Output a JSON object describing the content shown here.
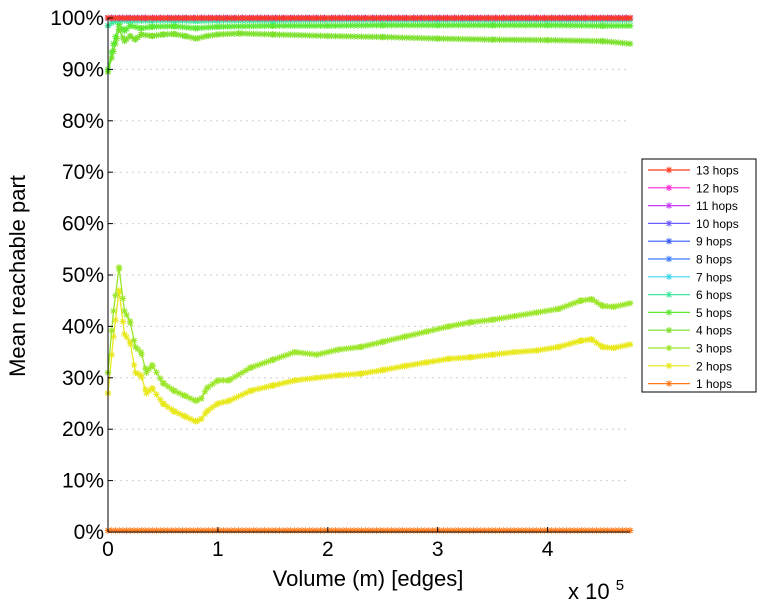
{
  "chart_data": {
    "type": "line",
    "xlabel": "Volume (m) [edges]",
    "ylabel": "Mean reachable part",
    "x_multiplier": "x 10",
    "x_multiplier_exp": "5",
    "xlim": [
      0,
      4.75
    ],
    "ylim": [
      0,
      100
    ],
    "x_ticks": [
      "0",
      "1",
      "2",
      "3",
      "4"
    ],
    "x_tick_values": [
      0,
      1,
      2,
      3,
      4
    ],
    "y_ticks": [
      "0%",
      "10%",
      "20%",
      "30%",
      "40%",
      "50%",
      "60%",
      "70%",
      "80%",
      "90%",
      "100%"
    ],
    "y_tick_values": [
      0,
      10,
      20,
      30,
      40,
      50,
      60,
      70,
      80,
      90,
      100
    ],
    "grid": "horizontal-dotted",
    "legend_position": "right",
    "series": [
      {
        "name": "13 hops",
        "color": "#ff3b1f",
        "marker": "asterisk",
        "x": [
          0,
          4.75
        ],
        "y": [
          100,
          100
        ]
      },
      {
        "name": "12 hops",
        "color": "#ff2ad4",
        "marker": "asterisk",
        "x": [
          0,
          4.75
        ],
        "y": [
          100,
          100
        ]
      },
      {
        "name": "11 hops",
        "color": "#c83cff",
        "marker": "asterisk",
        "x": [
          0,
          4.75
        ],
        "y": [
          100,
          100
        ]
      },
      {
        "name": "10 hops",
        "color": "#6a5cff",
        "marker": "asterisk",
        "x": [
          0,
          4.75
        ],
        "y": [
          100,
          100
        ]
      },
      {
        "name": "9 hops",
        "color": "#3a5cff",
        "marker": "asterisk",
        "x": [
          0,
          4.75
        ],
        "y": [
          100,
          100
        ]
      },
      {
        "name": "8 hops",
        "color": "#3c7cff",
        "marker": "asterisk",
        "x": [
          0,
          4.75
        ],
        "y": [
          100,
          100
        ]
      },
      {
        "name": "7 hops",
        "color": "#3ed6e8",
        "marker": "asterisk",
        "x": [
          0,
          4.75
        ],
        "y": [
          100,
          100
        ]
      },
      {
        "name": "6 hops",
        "color": "#3ee89c",
        "marker": "asterisk",
        "x": [
          0,
          0.05,
          0.1,
          0.2,
          0.4,
          0.6,
          0.8,
          1.0,
          1.5,
          2.0,
          3.0,
          4.0,
          4.75
        ],
        "y": [
          98.5,
          99.3,
          99.5,
          99.4,
          99.5,
          99.5,
          99.4,
          99.5,
          99.5,
          99.6,
          99.6,
          99.6,
          99.6
        ]
      },
      {
        "name": "5 hops",
        "color": "#5ce830",
        "marker": "asterisk",
        "x": [
          0,
          0.05,
          0.1,
          0.15,
          0.2,
          0.3,
          0.4,
          0.6,
          0.8,
          1.0,
          1.5,
          2.0,
          2.5,
          3.0,
          3.5,
          4.0,
          4.5,
          4.75
        ],
        "y": [
          90.0,
          95.0,
          98.8,
          97.5,
          98.5,
          98.0,
          98.3,
          98.4,
          98.0,
          98.3,
          98.5,
          98.5,
          98.6,
          98.6,
          98.6,
          98.6,
          98.5,
          98.5
        ]
      },
      {
        "name": "4 hops",
        "color": "#7ae02a",
        "marker": "asterisk",
        "x": [
          0,
          0.05,
          0.08,
          0.1,
          0.15,
          0.2,
          0.25,
          0.3,
          0.4,
          0.5,
          0.6,
          0.7,
          0.8,
          0.9,
          1.0,
          1.2,
          1.5,
          2.0,
          2.5,
          3.0,
          3.5,
          4.0,
          4.5,
          4.75
        ],
        "y": [
          89.5,
          93.5,
          96.0,
          97.8,
          95.5,
          96.5,
          95.8,
          96.8,
          96.5,
          96.8,
          96.9,
          96.5,
          96.0,
          96.5,
          96.8,
          97.0,
          96.8,
          96.5,
          96.3,
          96.0,
          95.8,
          95.7,
          95.5,
          95.0
        ]
      },
      {
        "name": "3 hops",
        "color": "#9ae628",
        "marker": "asterisk",
        "x": [
          0,
          0.05,
          0.1,
          0.15,
          0.2,
          0.25,
          0.3,
          0.35,
          0.4,
          0.5,
          0.6,
          0.7,
          0.8,
          0.85,
          0.9,
          1.0,
          1.1,
          1.3,
          1.5,
          1.7,
          1.9,
          2.1,
          2.3,
          2.5,
          2.7,
          2.9,
          3.1,
          3.3,
          3.5,
          3.7,
          3.9,
          4.1,
          4.3,
          4.4,
          4.5,
          4.6,
          4.75
        ],
        "y": [
          31.0,
          43.0,
          51.5,
          43.0,
          41.0,
          36.0,
          35.0,
          31.0,
          32.5,
          29.0,
          27.5,
          26.5,
          25.5,
          26.0,
          28.0,
          29.5,
          29.5,
          32.0,
          33.5,
          35.0,
          34.5,
          35.5,
          36.0,
          37.0,
          38.0,
          39.0,
          40.0,
          40.8,
          41.3,
          42.0,
          42.7,
          43.4,
          45.0,
          45.3,
          44.0,
          43.8,
          44.5
        ]
      },
      {
        "name": "2 hops",
        "color": "#e8e81a",
        "marker": "asterisk",
        "x": [
          0,
          0.05,
          0.1,
          0.15,
          0.2,
          0.25,
          0.3,
          0.35,
          0.4,
          0.5,
          0.6,
          0.7,
          0.8,
          0.85,
          0.9,
          1.0,
          1.1,
          1.3,
          1.5,
          1.7,
          1.9,
          2.1,
          2.3,
          2.5,
          2.7,
          2.9,
          3.1,
          3.3,
          3.5,
          3.7,
          3.9,
          4.1,
          4.3,
          4.4,
          4.5,
          4.6,
          4.75
        ],
        "y": [
          27.0,
          38.0,
          47.0,
          38.5,
          37.0,
          31.0,
          30.5,
          27.0,
          28.0,
          25.0,
          23.5,
          22.5,
          21.5,
          22.0,
          23.5,
          25.0,
          25.5,
          27.5,
          28.5,
          29.5,
          30.0,
          30.5,
          30.8,
          31.5,
          32.3,
          33.0,
          33.7,
          34.0,
          34.5,
          35.0,
          35.3,
          36.0,
          37.2,
          37.5,
          36.0,
          35.8,
          36.5
        ]
      },
      {
        "name": "1 hops",
        "color": "#ff7a1a",
        "marker": "asterisk",
        "x": [
          0,
          4.75
        ],
        "y": [
          0.3,
          0.3
        ]
      }
    ]
  }
}
